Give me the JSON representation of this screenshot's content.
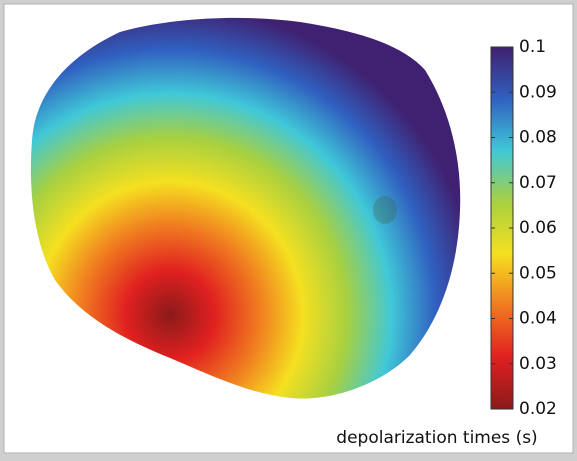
{
  "chart_data": {
    "type": "colorbar-surface",
    "colorbar_label": "depolarization times (s)",
    "clim": [
      0.02,
      0.1
    ],
    "ticks": [
      0.1,
      0.09,
      0.08,
      0.07,
      0.06,
      0.05,
      0.04,
      0.03,
      0.02
    ],
    "colors": [
      "#8b1a1a",
      "#e02020",
      "#f07a20",
      "#f5e020",
      "#a8d040",
      "#40c8d8",
      "#3060c0",
      "#402070"
    ]
  }
}
